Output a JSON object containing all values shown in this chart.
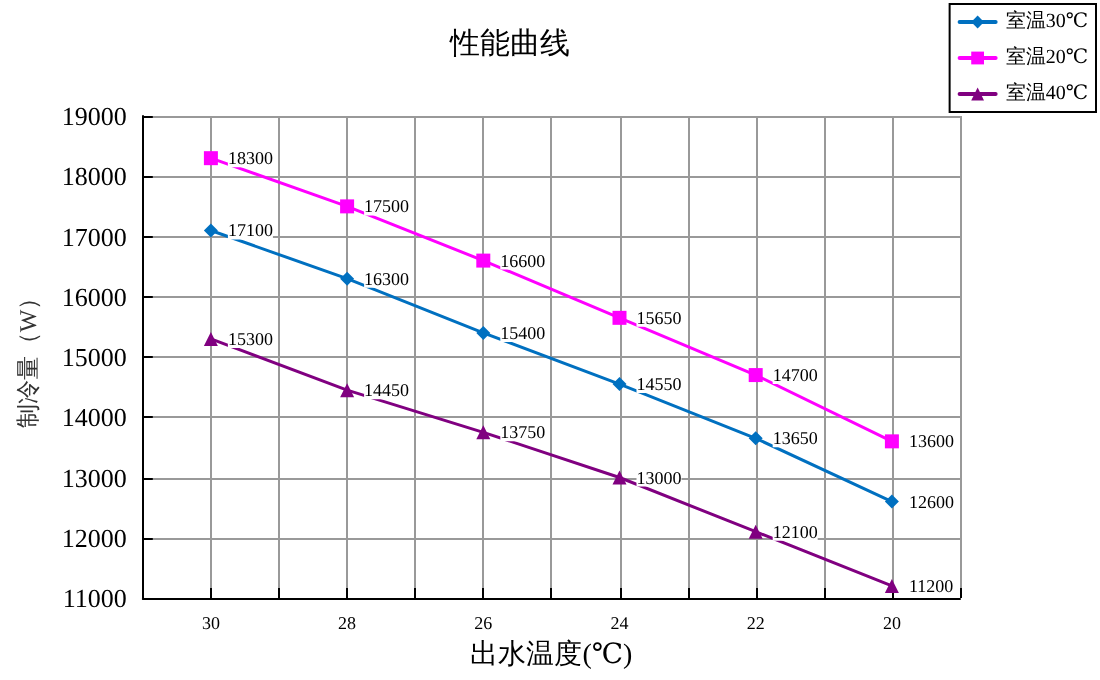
{
  "chart_data": {
    "type": "line",
    "title": "性能曲线",
    "xlabel": "出水温度(℃)",
    "ylabel": "制冷量（W）",
    "x": [
      30,
      28,
      26,
      24,
      22,
      20
    ],
    "series": [
      {
        "name": "室温30℃",
        "color": "#0070c0",
        "marker": "diamond",
        "values": [
          17100,
          16300,
          15400,
          14550,
          13650,
          12600
        ]
      },
      {
        "name": "室温20℃",
        "color": "#ff00ff",
        "marker": "square",
        "values": [
          18300,
          17500,
          16600,
          15650,
          14700,
          13600
        ]
      },
      {
        "name": "室温40℃",
        "color": "#800080",
        "marker": "triangle",
        "values": [
          15300,
          14450,
          13750,
          13000,
          12100,
          11200
        ]
      }
    ],
    "xlim": [
      31,
      19
    ],
    "xticks": [
      {
        "value": 31,
        "label": null
      },
      30,
      {
        "value": 29,
        "label": null
      },
      28,
      {
        "value": 27,
        "label": null
      },
      26,
      {
        "value": 25,
        "label": null
      },
      24,
      {
        "value": 23,
        "label": null
      },
      22,
      {
        "value": 21,
        "label": null
      },
      20,
      {
        "value": 19,
        "label": null
      }
    ],
    "ylim": [
      11000,
      19000
    ],
    "yticks": [
      11000,
      12000,
      13000,
      14000,
      15000,
      16000,
      17000,
      18000,
      19000
    ],
    "grid": true,
    "legend": "top right",
    "data_labels": true,
    "line_style": "solid"
  }
}
